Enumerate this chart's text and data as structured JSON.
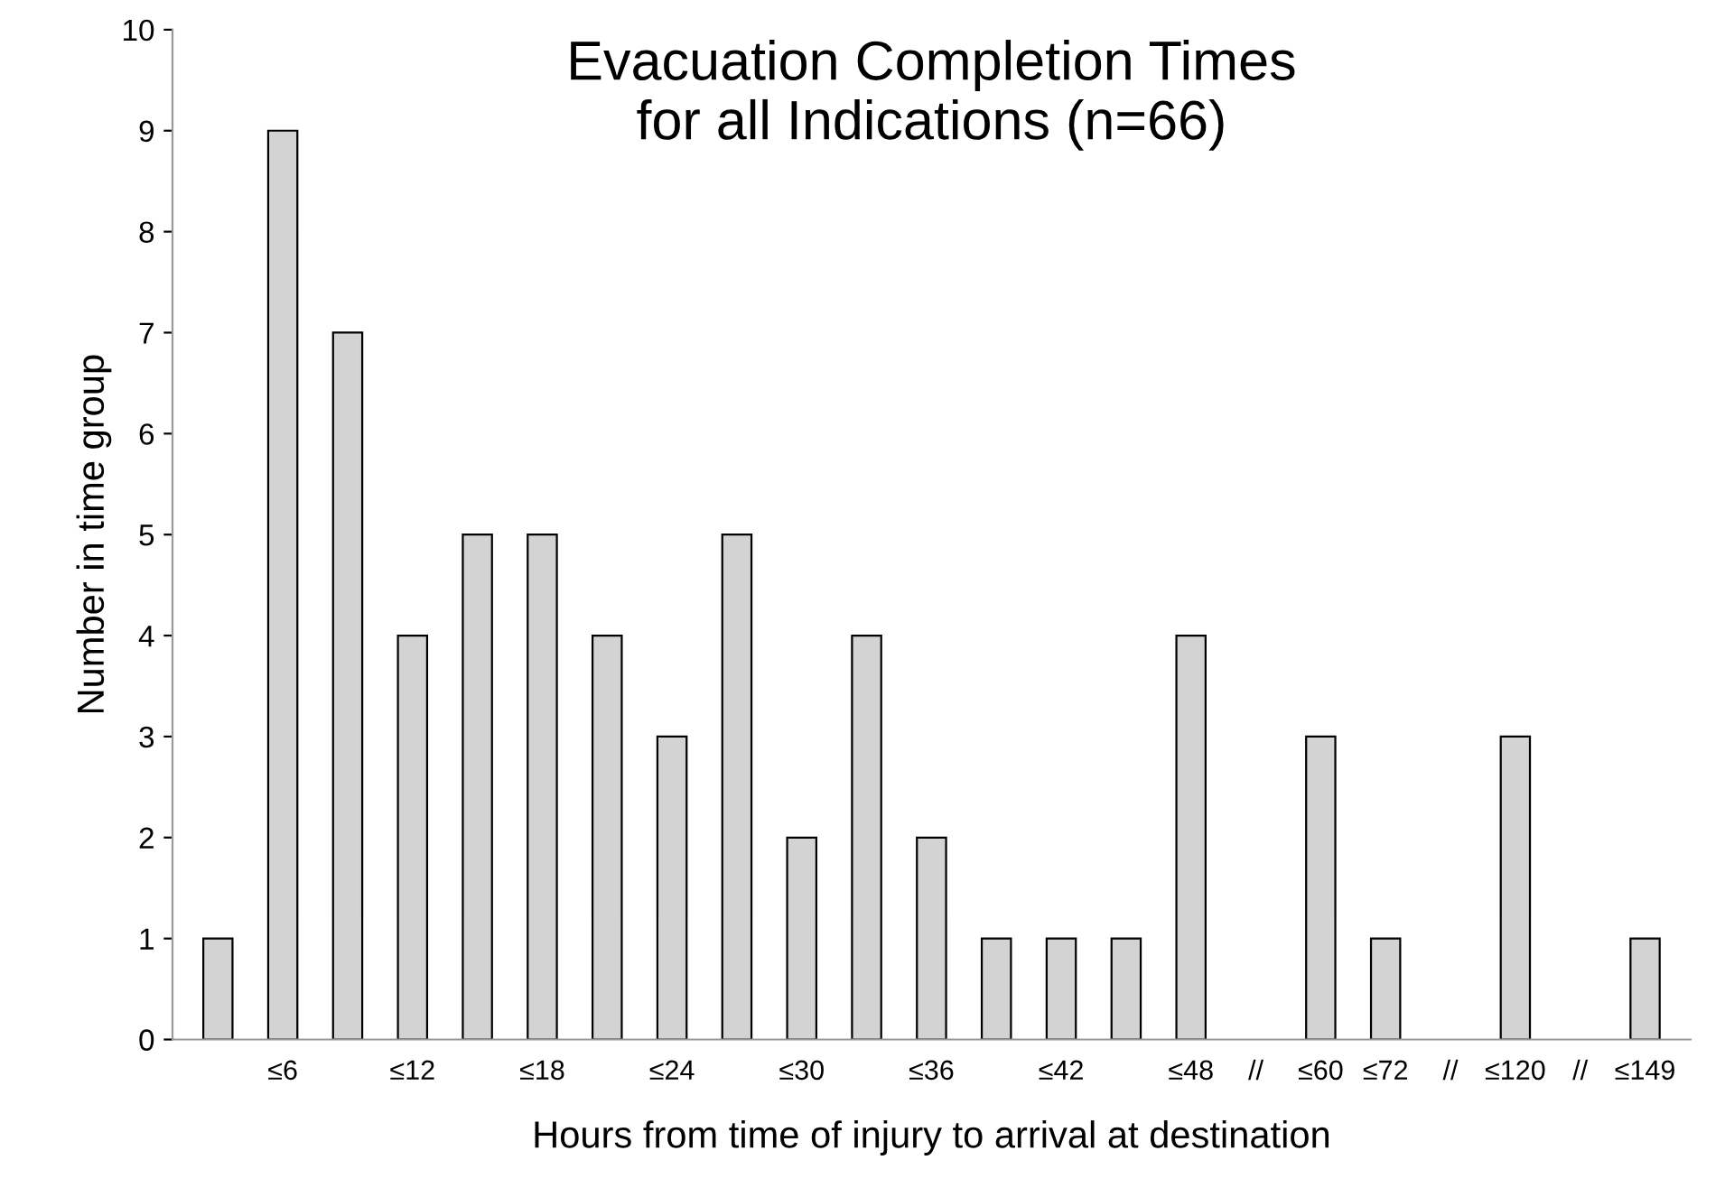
{
  "chart_data": {
    "type": "bar",
    "title": "Evacuation Completion Times\nfor all Indications (n=66)",
    "xlabel": "Hours from time of injury to arrival at destination",
    "ylabel": "Number in time group",
    "categories": [
      null,
      "≤6",
      null,
      "≤12",
      null,
      "≤18",
      null,
      "≤24",
      null,
      "≤30",
      null,
      "≤36",
      null,
      "≤42",
      null,
      "≤48",
      "//",
      "≤60",
      "≤72",
      "//",
      "≤120",
      "//",
      "≤149"
    ],
    "values": [
      1,
      9,
      7,
      4,
      5,
      5,
      4,
      3,
      5,
      2,
      4,
      2,
      1,
      1,
      1,
      4,
      null,
      3,
      1,
      null,
      3,
      null,
      1
    ],
    "color": "#d3d3d3",
    "ylim": [
      0,
      10
    ],
    "yticks": [
      0,
      1,
      2,
      3,
      4,
      5,
      6,
      7,
      8,
      9,
      10
    ],
    "grid": false,
    "legend": false
  }
}
